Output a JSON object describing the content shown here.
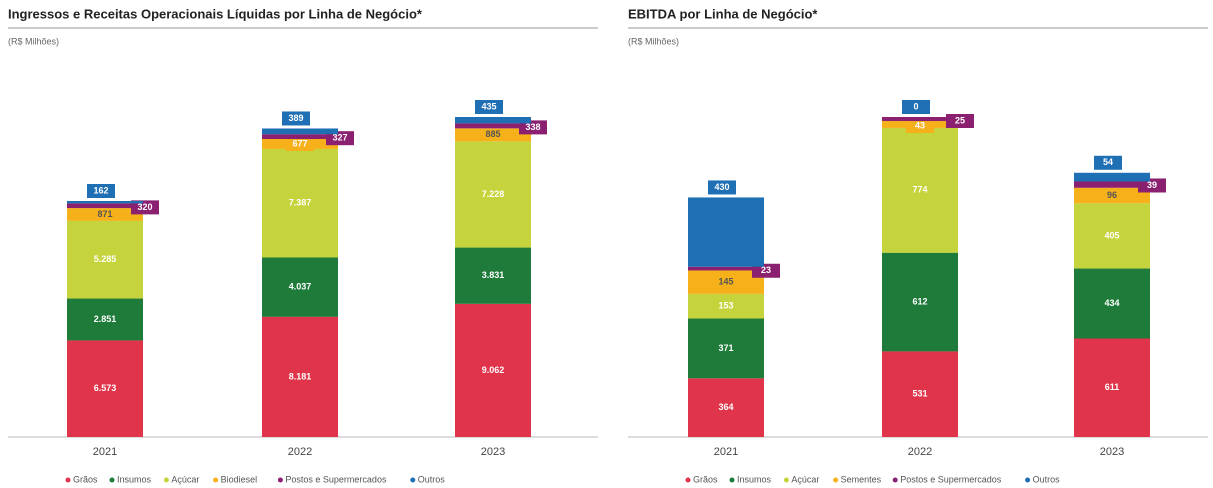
{
  "chart_data": [
    {
      "type": "bar",
      "stacked": true,
      "title": "Ingressos e Receitas Operacionais Líquidas por Linha de Negócio*",
      "subtitle": "(R$ Milhões)",
      "categories": [
        "2021",
        "2022",
        "2023"
      ],
      "series": [
        {
          "name": "Grãos",
          "color": "#e0344a",
          "values": [
            6573,
            8181,
            9062
          ],
          "value_labels": [
            "6.573",
            "8.181",
            "9.062"
          ]
        },
        {
          "name": "Insumos",
          "color": "#1e7b3a",
          "values": [
            2851,
            4037,
            3831
          ],
          "value_labels": [
            "2.851",
            "4.037",
            "3.831"
          ]
        },
        {
          "name": "Açúcar",
          "color": "#c5d43c",
          "values": [
            5285,
            7387,
            7228
          ],
          "value_labels": [
            "5.285",
            "7.387",
            "7.228"
          ]
        },
        {
          "name": "Biodiesel",
          "color": "#f5b01a",
          "values": [
            871,
            677,
            885
          ]
        },
        {
          "name": "Postos e Supermercados",
          "color": "#8b2070",
          "values": [
            320,
            327,
            338
          ]
        },
        {
          "name": "Outros",
          "color": "#1f6fb4",
          "values": [
            162,
            389,
            435
          ]
        }
      ]
    },
    {
      "type": "bar",
      "stacked": true,
      "title": "EBITDA por Linha de Negócio*",
      "subtitle": "(R$ Milhões)",
      "categories": [
        "2021",
        "2022",
        "2023"
      ],
      "series": [
        {
          "name": "Grãos",
          "color": "#e0344a",
          "values": [
            364,
            531,
            611
          ]
        },
        {
          "name": "Insumos",
          "color": "#1e7b3a",
          "values": [
            371,
            612,
            434
          ]
        },
        {
          "name": "Açúcar",
          "color": "#c5d43c",
          "values": [
            153,
            774,
            405
          ]
        },
        {
          "name": "Sementes",
          "color": "#f5b01a",
          "values": [
            145,
            43,
            96
          ]
        },
        {
          "name": "Postos e Supermercados",
          "color": "#8b2070",
          "values": [
            23,
            25,
            39
          ]
        },
        {
          "name": "Outros",
          "color": "#1f6fb4",
          "values": [
            430,
            0,
            54
          ]
        }
      ]
    }
  ]
}
